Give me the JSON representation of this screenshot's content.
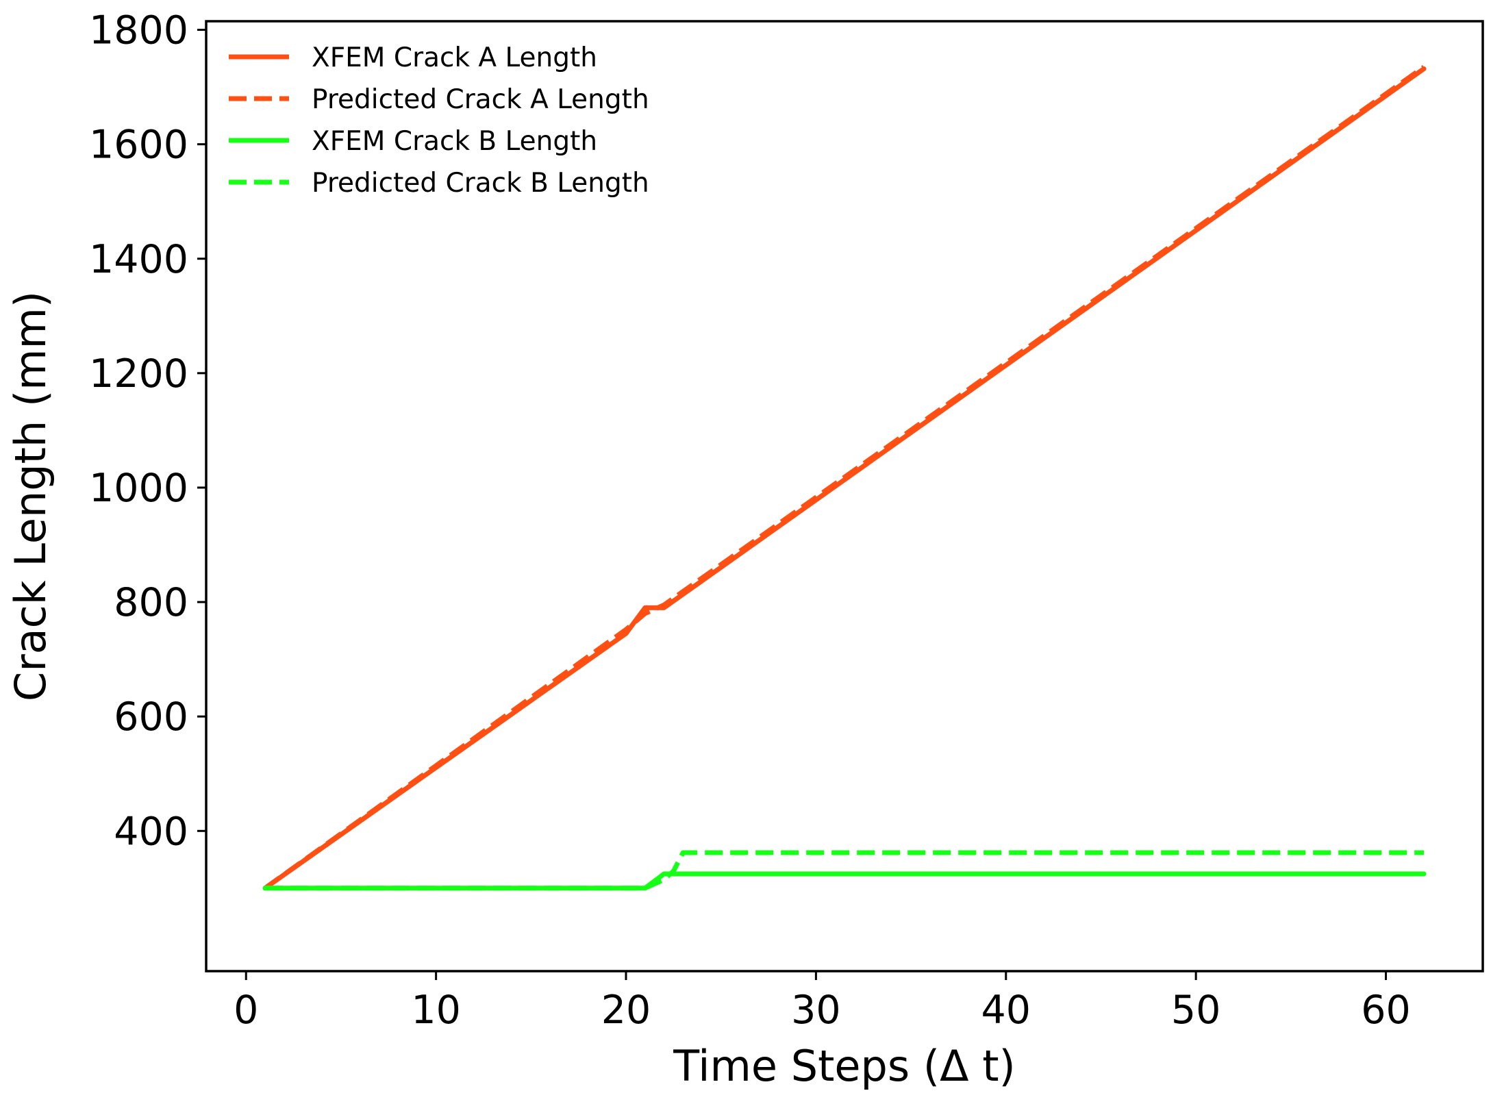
{
  "chart_data": {
    "type": "line",
    "title": "",
    "xlabel": "Time Steps (Δ t)",
    "ylabel": "Crack Length (mm)",
    "xlim": [
      -2.1,
      65.1
    ],
    "ylim": [
      155,
      1815
    ],
    "xticks": [
      0,
      10,
      20,
      30,
      40,
      50,
      60
    ],
    "yticks": [
      400,
      600,
      800,
      1000,
      1200,
      1400,
      1600,
      1800
    ],
    "grid": false,
    "legend": {
      "position": "top-left"
    },
    "series": [
      {
        "name": "XFEM Crack A Length",
        "color": "#FF4F12",
        "linestyle": "solid",
        "x": [
          1,
          20,
          21,
          22,
          62
        ],
        "y": [
          300,
          745,
          790,
          790,
          1732
        ]
      },
      {
        "name": "Predicted Crack A Length",
        "color": "#FF4F12",
        "linestyle": "dashed",
        "x": [
          1,
          20,
          21,
          22,
          62
        ],
        "y": [
          300,
          752,
          780,
          795,
          1735
        ]
      },
      {
        "name": "XFEM Crack B Length",
        "color": "#16FF16",
        "linestyle": "solid",
        "x": [
          1,
          21,
          22,
          23,
          62
        ],
        "y": [
          300,
          300,
          325,
          325,
          325
        ]
      },
      {
        "name": "Predicted Crack B Length",
        "color": "#16FF16",
        "linestyle": "dashed",
        "x": [
          1,
          21,
          22,
          22.5,
          23,
          62
        ],
        "y": [
          300,
          300,
          315,
          330,
          362,
          362
        ]
      }
    ]
  }
}
